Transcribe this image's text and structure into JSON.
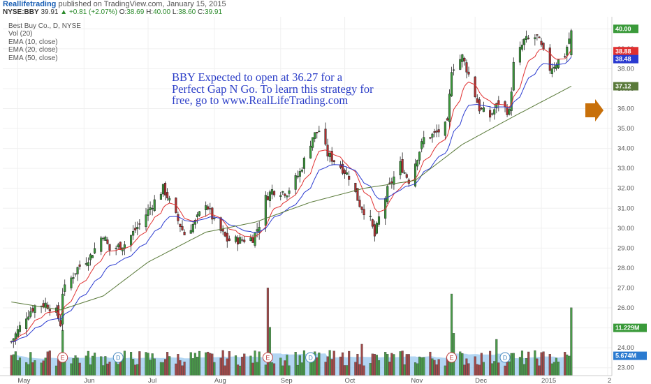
{
  "header": {
    "author": "Reallifetrading",
    "published": "published on TradingView.com, January 15, 2015",
    "symbol": "NYSE:BBY",
    "last": "39.91",
    "change": "+0.81 (+2.07%)",
    "open_label": "O:",
    "open": "38.69",
    "high_label": "H:",
    "high": "40.00",
    "low_label": "L:",
    "low": "38.60",
    "close_label": "C:",
    "close": "39.91"
  },
  "legend": {
    "title": "Best Buy Co., D, NYSE",
    "vol": "Vol (20)",
    "ema10": "EMA (10, close)",
    "ema20": "EMA (20, close)",
    "ema50": "EMA (50, close)"
  },
  "annotation": {
    "line1": "BBY Expected to open at 36.27 for a",
    "line2": "Perfect Gap N Go.  To learn this strategy for",
    "line3": "free, go to www.RealLifeTrading.com"
  },
  "colors": {
    "up": "#3a9a3a",
    "down": "#b03030",
    "ema10": "#e03030",
    "ema20": "#2a3ad0",
    "ema50": "#5a7a3a",
    "vol_up": "#4a9a4a",
    "vol_down": "#a04a4a",
    "vol_ma": "#9ac8ef",
    "arrow": "#c8700a"
  },
  "chart_data": {
    "type": "candlestick",
    "ylim": [
      22.5,
      40.5
    ],
    "y_ticks": [
      "23.00",
      "24.00",
      "25.00",
      "26.00",
      "27.00",
      "28.00",
      "29.00",
      "30.00",
      "31.00",
      "32.00",
      "33.00",
      "34.00",
      "35.00",
      "36.00",
      "37.00",
      "38.00",
      "39.00",
      "40.00"
    ],
    "x_labels": [
      {
        "label": "May",
        "date": "2014-05-01"
      },
      {
        "label": "Jun",
        "date": "2014-06-01"
      },
      {
        "label": "Jul",
        "date": "2014-07-01"
      },
      {
        "label": "Aug",
        "date": "2014-08-01"
      },
      {
        "label": "Sep",
        "date": "2014-09-01"
      },
      {
        "label": "Oct",
        "date": "2014-10-01"
      },
      {
        "label": "Nov",
        "date": "2014-11-01"
      },
      {
        "label": "Dec",
        "date": "2014-12-01"
      },
      {
        "label": "2015",
        "date": "2015-01-01"
      },
      {
        "label": "2",
        "date": "2015-02-01"
      }
    ],
    "price_badges": [
      {
        "value": "40.00",
        "label": "40.00",
        "color": "#3a9a3a"
      },
      {
        "value": "38.88",
        "label": "38.88",
        "color": "#e03030"
      },
      {
        "value": "38.48",
        "label": "38.48",
        "color": "#2a3ad0"
      },
      {
        "value": "37.12",
        "label": "37.12",
        "color": "#5a7a3a"
      },
      {
        "value": "25.00",
        "label": "11.229M",
        "color": "#3a9a3a"
      },
      {
        "value": "23.60",
        "label": "5.674M",
        "color": "#2a7ad0"
      }
    ],
    "events": [
      {
        "type": "E",
        "date": "2014-05-22"
      },
      {
        "type": "D",
        "date": "2014-06-17"
      },
      {
        "type": "E",
        "date": "2014-08-26"
      },
      {
        "type": "D",
        "date": "2014-09-15"
      },
      {
        "type": "E",
        "date": "2014-11-20"
      },
      {
        "type": "D",
        "date": "2014-12-15"
      }
    ],
    "anchors": [
      [
        "2014-04-28",
        24.3
      ],
      [
        "2014-05-05",
        25.6
      ],
      [
        "2014-05-09",
        26.1
      ],
      [
        "2014-05-14",
        26.2
      ],
      [
        "2014-05-19",
        25.8
      ],
      [
        "2014-05-21",
        25.2
      ],
      [
        "2014-05-22",
        26.8
      ],
      [
        "2014-05-29",
        28.0
      ],
      [
        "2014-06-04",
        28.6
      ],
      [
        "2014-06-10",
        29.7
      ],
      [
        "2014-06-13",
        28.9
      ],
      [
        "2014-06-20",
        29.2
      ],
      [
        "2014-06-27",
        30.2
      ],
      [
        "2014-07-03",
        31.2
      ],
      [
        "2014-07-08",
        32.0
      ],
      [
        "2014-07-10",
        31.6
      ],
      [
        "2014-07-14",
        30.6
      ],
      [
        "2014-07-18",
        29.7
      ],
      [
        "2014-07-23",
        30.3
      ],
      [
        "2014-07-28",
        31.3
      ],
      [
        "2014-08-01",
        30.3
      ],
      [
        "2014-08-07",
        29.4
      ],
      [
        "2014-08-13",
        29.4
      ],
      [
        "2014-08-19",
        29.5
      ],
      [
        "2014-08-22",
        30.2
      ],
      [
        "2014-08-25",
        31.5
      ],
      [
        "2014-08-28",
        31.9
      ],
      [
        "2014-09-04",
        31.8
      ],
      [
        "2014-09-10",
        32.8
      ],
      [
        "2014-09-16",
        34.6
      ],
      [
        "2014-09-19",
        34.9
      ],
      [
        "2014-09-23",
        33.7
      ],
      [
        "2014-09-29",
        33.1
      ],
      [
        "2014-10-03",
        32.6
      ],
      [
        "2014-10-08",
        31.2
      ],
      [
        "2014-10-13",
        30.4
      ],
      [
        "2014-10-15",
        29.6
      ],
      [
        "2014-10-17",
        30.5
      ],
      [
        "2014-10-21",
        31.9
      ],
      [
        "2014-10-27",
        33.2
      ],
      [
        "2014-10-31",
        32.4
      ],
      [
        "2014-11-04",
        33.6
      ],
      [
        "2014-11-07",
        34.5
      ],
      [
        "2014-11-12",
        34.7
      ],
      [
        "2014-11-18",
        35.2
      ],
      [
        "2014-11-20",
        38.0
      ],
      [
        "2014-11-25",
        38.6
      ],
      [
        "2014-11-28",
        37.7
      ],
      [
        "2014-12-03",
        36.0
      ],
      [
        "2014-12-08",
        35.6
      ],
      [
        "2014-12-12",
        36.3
      ],
      [
        "2014-12-17",
        35.8
      ],
      [
        "2014-12-19",
        38.2
      ],
      [
        "2014-12-24",
        39.4
      ],
      [
        "2014-12-30",
        39.6
      ],
      [
        "2015-01-05",
        38.0
      ],
      [
        "2015-01-08",
        38.3
      ],
      [
        "2015-01-12",
        38.7
      ],
      [
        "2015-01-15",
        39.91
      ]
    ],
    "ema50_anchors": [
      [
        "2014-04-28",
        26.3
      ],
      [
        "2014-05-21",
        25.9
      ],
      [
        "2014-06-10",
        26.6
      ],
      [
        "2014-07-01",
        28.3
      ],
      [
        "2014-07-28",
        29.8
      ],
      [
        "2014-08-20",
        30.3
      ],
      [
        "2014-09-15",
        31.3
      ],
      [
        "2014-10-10",
        32.0
      ],
      [
        "2014-11-03",
        32.4
      ],
      [
        "2014-11-25",
        34.2
      ],
      [
        "2014-12-19",
        35.6
      ],
      [
        "2015-01-15",
        37.12
      ]
    ],
    "volume_spikes": [
      {
        "date": "2014-05-22",
        "value": 7.5
      },
      {
        "date": "2014-08-26",
        "value": 14.5
      },
      {
        "date": "2014-08-27",
        "value": 8.0
      },
      {
        "date": "2014-10-09",
        "value": 5.2
      },
      {
        "date": "2014-11-20",
        "value": 13.5
      },
      {
        "date": "2014-11-21",
        "value": 7.0
      },
      {
        "date": "2014-12-11",
        "value": 6.0
      },
      {
        "date": "2015-01-15",
        "value": 11.229
      }
    ],
    "volume_ma_last": "5.674M",
    "volume_last": "11.229M"
  }
}
